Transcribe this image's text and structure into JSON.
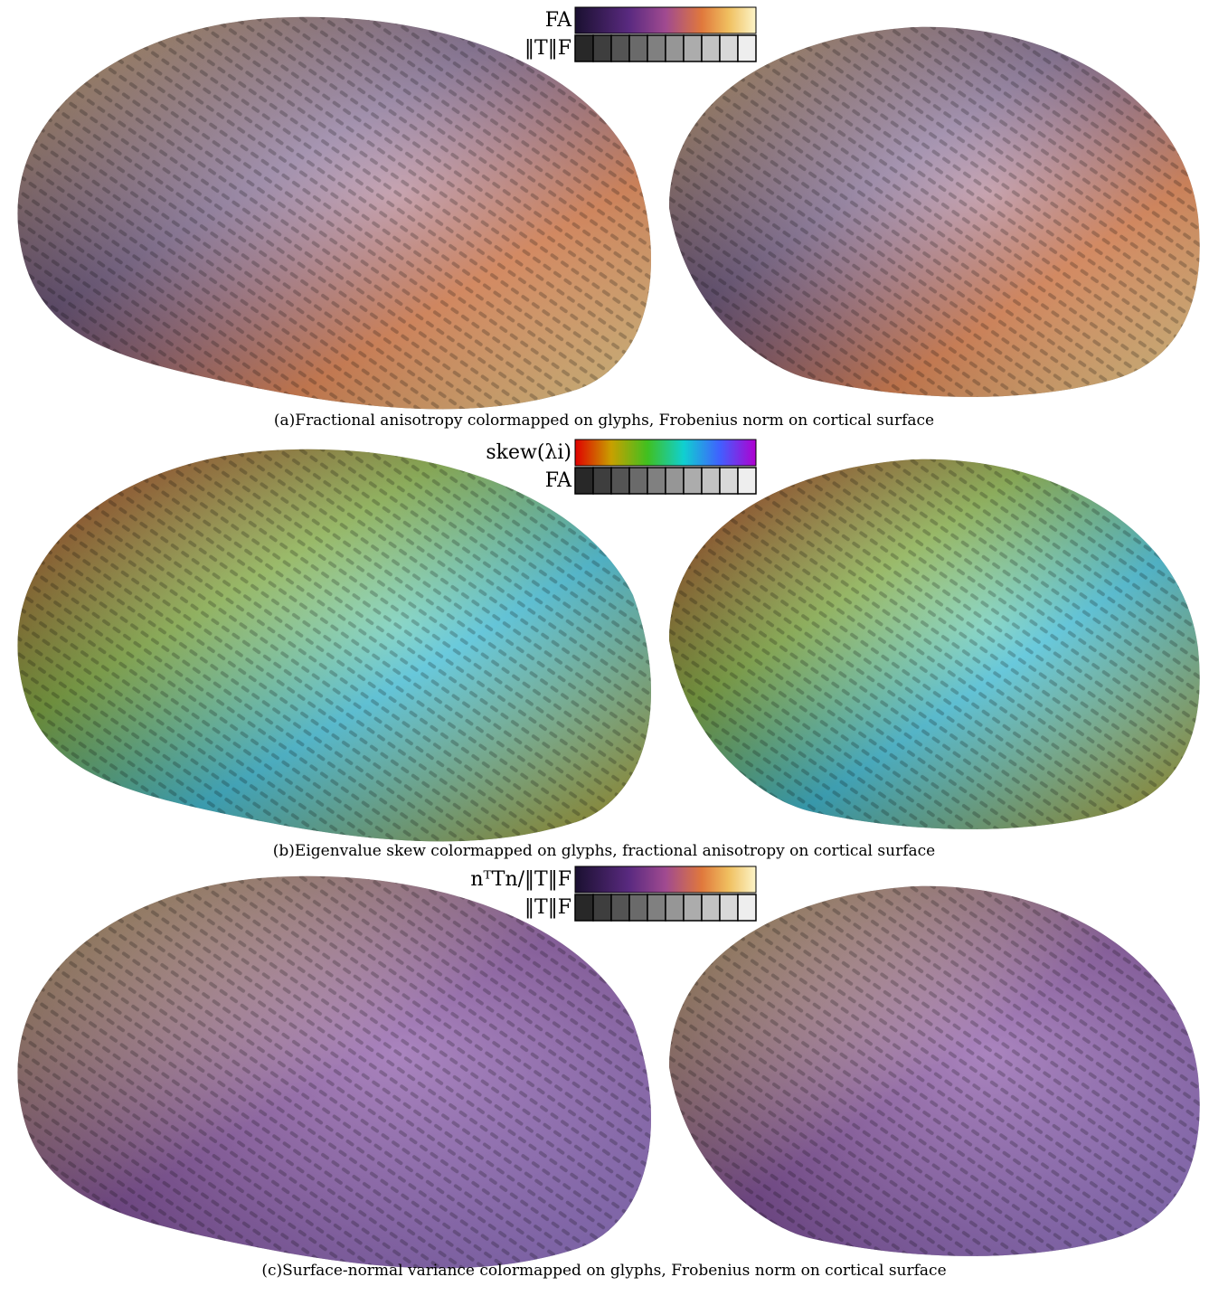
{
  "panels": [
    {
      "caption": "(a)Fractional anisotropy colormapped on glyphs, Frobenius norm on cortical surface",
      "colorbars": [
        {
          "label": "FA"
        },
        {
          "label": "‖T‖F"
        }
      ]
    },
    {
      "caption": "(b)Eigenvalue skew colormapped on glyphs, fractional anisotropy on cortical surface",
      "colorbars": [
        {
          "label": "skew(λi)"
        },
        {
          "label": "FA"
        }
      ]
    },
    {
      "caption": "(c)Surface-normal variance colormapped on glyphs, Frobenius norm on cortical surface",
      "colorbars": [
        {
          "label": "nᵀTn/‖T‖F"
        },
        {
          "label": "‖T‖F"
        }
      ]
    }
  ]
}
